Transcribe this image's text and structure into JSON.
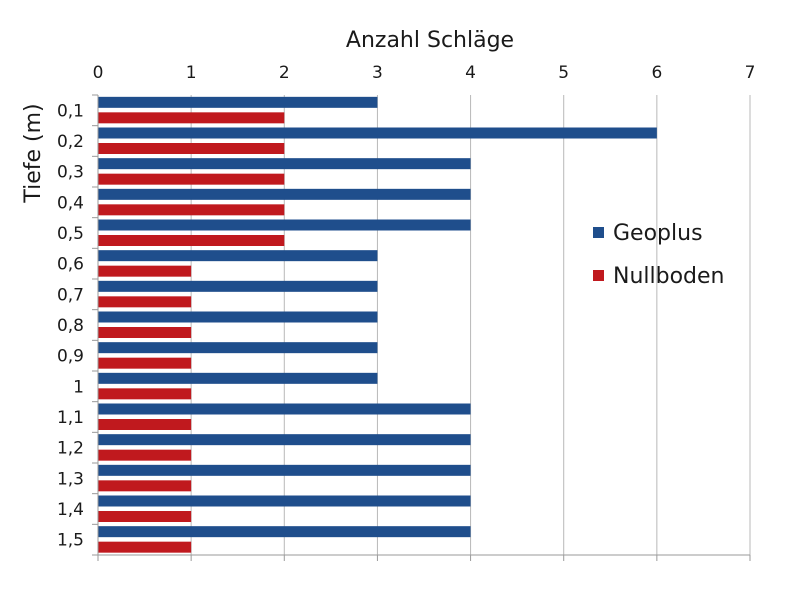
{
  "chart_data": {
    "type": "bar",
    "orientation": "horizontal",
    "title": "Anzahl Schläge",
    "xlabel": "Anzahl Schläge",
    "ylabel": "Tiefe (m)",
    "xlim": [
      0,
      7
    ],
    "x_ticks": [
      "0",
      "1",
      "2",
      "3",
      "4",
      "5",
      "6",
      "7"
    ],
    "x_axis_position": "top",
    "grid": "vertical",
    "legend_position": "right",
    "categories": [
      "0,1",
      "0,2",
      "0,3",
      "0,4",
      "0,5",
      "0,6",
      "0,7",
      "0,8",
      "0,9",
      "1",
      "1,1",
      "1,2",
      "1,3",
      "1,4",
      "1,5"
    ],
    "series": [
      {
        "name": "Geoplus",
        "color": "#1f4e8c",
        "values": [
          3,
          6,
          4,
          4,
          4,
          3,
          3,
          3,
          3,
          3,
          4,
          4,
          4,
          4,
          4
        ]
      },
      {
        "name": "Nullboden",
        "color": "#c0191e",
        "values": [
          2,
          2,
          2,
          2,
          2,
          1,
          1,
          1,
          1,
          1,
          1,
          1,
          1,
          1,
          1
        ]
      }
    ]
  }
}
